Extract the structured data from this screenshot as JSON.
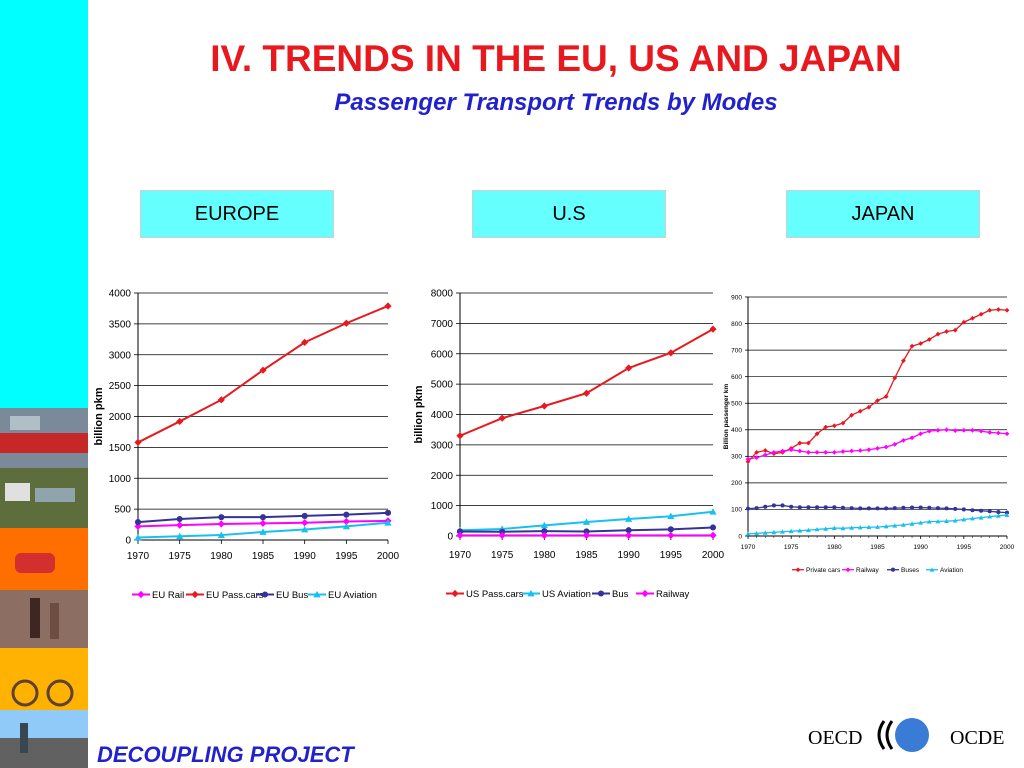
{
  "slide": {
    "title": "IV. TRENDS IN THE EU, US AND JAPAN",
    "subtitle": "Passenger Transport Trends by Modes",
    "footer": "DECOUPLING PROJECT",
    "logo_left": "OECD",
    "logo_right": "OCDE",
    "accent_color": "#00ffff",
    "title_color": "#e8191e",
    "subtitle_color": "#2222cc"
  },
  "regions": [
    "EUROPE",
    "U.S",
    "JAPAN"
  ],
  "chart_data": [
    {
      "type": "line",
      "region": "EUROPE",
      "ylabel": "billion pkm",
      "x": [
        1970,
        1975,
        1980,
        1985,
        1990,
        1995,
        2000
      ],
      "ylim": [
        0,
        4000
      ],
      "yticks": [
        0,
        500,
        1000,
        1500,
        2000,
        2500,
        3000,
        3500,
        4000
      ],
      "grid": true,
      "legend": "bottom",
      "series": [
        {
          "name": "EU Rail",
          "color": "#ff00ff",
          "marker": "diamond",
          "values": [
            220,
            240,
            260,
            270,
            280,
            300,
            310
          ]
        },
        {
          "name": "EU Pass.cars",
          "color": "#e8191e",
          "marker": "diamond",
          "values": [
            1580,
            1920,
            2270,
            2750,
            3200,
            3510,
            3790
          ]
        },
        {
          "name": "EU Bus",
          "color": "#333399",
          "marker": "circle",
          "values": [
            290,
            340,
            370,
            370,
            390,
            410,
            440
          ]
        },
        {
          "name": "EU Aviation",
          "color": "#18c0f0",
          "marker": "triangle",
          "values": [
            40,
            60,
            80,
            130,
            170,
            220,
            280
          ]
        }
      ]
    },
    {
      "type": "line",
      "region": "U.S",
      "ylabel": "billion pkm",
      "x": [
        1970,
        1975,
        1980,
        1985,
        1990,
        1995,
        2000
      ],
      "ylim": [
        0,
        8000
      ],
      "yticks": [
        0,
        1000,
        2000,
        3000,
        4000,
        5000,
        6000,
        7000,
        8000
      ],
      "grid": true,
      "legend": "bottom",
      "series": [
        {
          "name": "US Pass.cars",
          "color": "#e8191e",
          "marker": "diamond",
          "values": [
            3300,
            3880,
            4280,
            4700,
            5530,
            6030,
            6810
          ]
        },
        {
          "name": "US Aviation",
          "color": "#18c0f0",
          "marker": "triangle",
          "values": [
            190,
            230,
            350,
            460,
            560,
            650,
            800
          ]
        },
        {
          "name": "Bus",
          "color": "#333399",
          "marker": "circle",
          "values": [
            150,
            140,
            160,
            150,
            190,
            220,
            280
          ]
        },
        {
          "name": "Railway",
          "color": "#ff00ff",
          "marker": "diamond",
          "values": [
            20,
            20,
            20,
            20,
            20,
            20,
            20
          ]
        }
      ]
    },
    {
      "type": "line",
      "region": "JAPAN",
      "ylabel": "Billion passenger km",
      "x": [
        1970,
        1971,
        1972,
        1973,
        1974,
        1975,
        1976,
        1977,
        1978,
        1979,
        1980,
        1981,
        1982,
        1983,
        1984,
        1985,
        1986,
        1987,
        1988,
        1989,
        1990,
        1991,
        1992,
        1993,
        1994,
        1995,
        1996,
        1997,
        1998,
        1999,
        2000
      ],
      "xticks": [
        1970,
        1975,
        1980,
        1985,
        1990,
        1995,
        2000
      ],
      "ylim": [
        0,
        900
      ],
      "yticks": [
        0,
        100,
        200,
        300,
        400,
        500,
        600,
        700,
        800,
        900
      ],
      "grid": true,
      "legend": "bottom",
      "series": [
        {
          "name": "Private cars",
          "color": "#e8191e",
          "marker": "diamond",
          "values": [
            280,
            315,
            322,
            310,
            315,
            330,
            350,
            350,
            385,
            410,
            415,
            425,
            455,
            470,
            485,
            510,
            525,
            595,
            660,
            715,
            725,
            740,
            760,
            770,
            775,
            805,
            820,
            835,
            850,
            853,
            850
          ]
        },
        {
          "name": "Railway",
          "color": "#ff00ff",
          "marker": "diamond",
          "values": [
            290,
            295,
            305,
            315,
            320,
            325,
            320,
            315,
            315,
            315,
            315,
            318,
            320,
            322,
            325,
            330,
            335,
            345,
            360,
            370,
            385,
            395,
            398,
            400,
            397,
            398,
            398,
            395,
            390,
            388,
            385
          ]
        },
        {
          "name": "Buses",
          "color": "#333399",
          "marker": "circle",
          "values": [
            103,
            105,
            110,
            115,
            115,
            110,
            108,
            108,
            108,
            108,
            108,
            106,
            105,
            104,
            104,
            104,
            104,
            105,
            106,
            107,
            107,
            106,
            105,
            104,
            102,
            100,
            97,
            95,
            93,
            90,
            88
          ]
        },
        {
          "name": "Aviation",
          "color": "#18c0f0",
          "marker": "triangle",
          "values": [
            8,
            10,
            12,
            14,
            16,
            18,
            20,
            22,
            25,
            27,
            30,
            29,
            31,
            32,
            33,
            34,
            36,
            39,
            42,
            46,
            50,
            54,
            55,
            56,
            58,
            62,
            66,
            69,
            73,
            76,
            79
          ]
        }
      ]
    }
  ]
}
